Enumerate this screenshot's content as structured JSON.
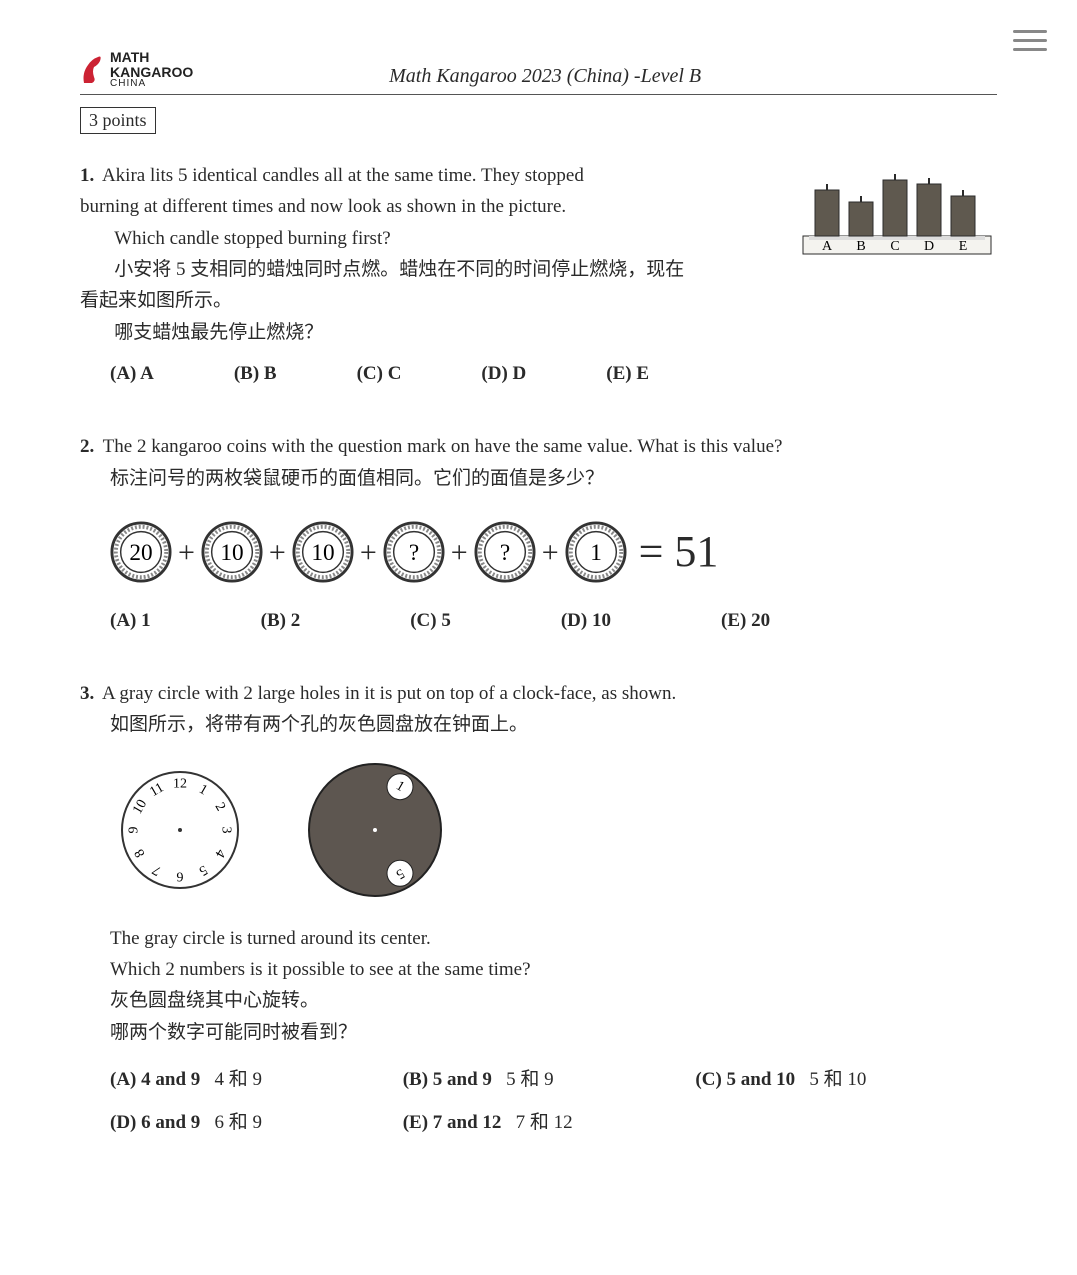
{
  "header": {
    "logo_line1": "MATH",
    "logo_line2": "KANGAROO",
    "logo_line3": "CHINA",
    "title": "Math Kangaroo 2023 (China) -Level B"
  },
  "points_label": "3 points",
  "q1": {
    "num": "1.",
    "line1": "Akira lits 5 identical candles all at the same time.  They stopped",
    "line2": "burning at different times and now look as shown in the picture.",
    "line3": "Which candle stopped burning first?",
    "cn1": "小安将 5 支相同的蜡烛同时点燃。蜡烛在不同的时间停止燃烧，现在",
    "cn2": "看起来如图所示。",
    "cn3": "哪支蜡烛最先停止燃烧？",
    "options": {
      "a": "(A) A",
      "b": "(B) B",
      "c": "(C) C",
      "d": "(D) D",
      "e": "(E) E"
    },
    "candles": {
      "heights": [
        46,
        34,
        56,
        52,
        40
      ],
      "labels": [
        "A",
        "B",
        "C",
        "D",
        "E"
      ],
      "candle_color": "#5f594f",
      "base_color": "#f4f3ef",
      "stroke": "#2b2b2b"
    }
  },
  "q2": {
    "num": "2.",
    "text_en": "The 2 kangaroo coins with the question mark on have the same value. What is this value?",
    "text_cn": "标注问号的两枚袋鼠硬币的面值相同。它们的面值是多少？",
    "coins": [
      "20",
      "10",
      "10",
      "?",
      "?",
      "1"
    ],
    "result": "= 51",
    "plus": "+",
    "options": {
      "a": "(A) 1",
      "b": "(B) 2",
      "c": "(C) 5",
      "d": "(D) 10",
      "e": "(E) 20"
    },
    "style": {
      "outer_stroke": "#333333",
      "inner_fill": "#ffffff",
      "coin_font": 24,
      "ridge_color": "#888888"
    }
  },
  "q3": {
    "num": "3.",
    "text_en": "A gray circle with 2 large holes in it is put on top of a clock-face, as shown.",
    "text_cn": "如图所示，将带有两个孔的灰色圆盘放在钟面上。",
    "post1": "The gray circle is turned around its center.",
    "post2": "Which 2 numbers is it possible to see at the same time?",
    "post_cn1": "灰色圆盘绕其中心旋转。",
    "post_cn2": "哪两个数字可能同时被看到？",
    "clock_numbers": [
      "12",
      "1",
      "2",
      "3",
      "4",
      "5",
      "6",
      "7",
      "8",
      "9",
      "10",
      "11"
    ],
    "gray_visible": [
      "1",
      "5"
    ],
    "options": {
      "a_en": "(A) 4 and 9",
      "a_cn": "4 和 9",
      "b_en": "(B) 5 and 9",
      "b_cn": "5 和 9",
      "c_en": "(C) 5 and 10",
      "c_cn": "5 和 10",
      "d_en": "(D) 6 and 9",
      "d_cn": "6 和 9",
      "e_en": "(E) 7 and 12",
      "e_cn": "7 和 12"
    },
    "style": {
      "gray_fill": "#5d5650",
      "clock_stroke": "#333333",
      "hole_fill": "#ffffff"
    }
  }
}
